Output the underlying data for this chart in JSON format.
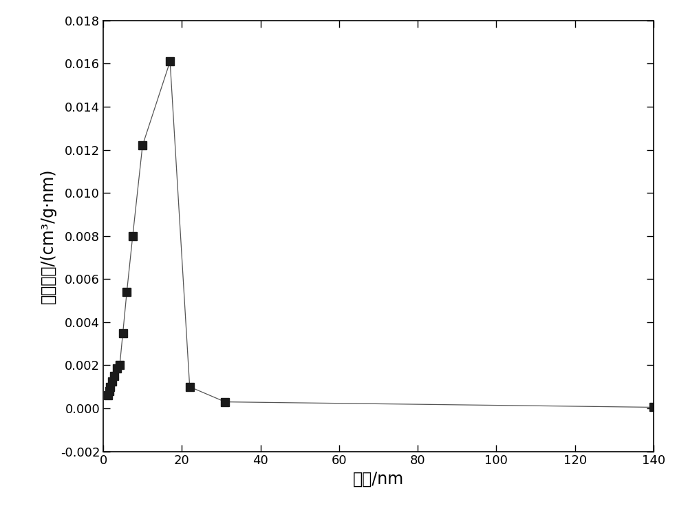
{
  "x": [
    1.2,
    1.5,
    1.8,
    2.2,
    2.8,
    3.5,
    4.2,
    5.0,
    6.0,
    7.5,
    10.0,
    17.0,
    22.0,
    31.0,
    140.0
  ],
  "y": [
    0.0006,
    0.0008,
    0.001,
    0.00125,
    0.0015,
    0.00185,
    0.002,
    0.0035,
    0.0054,
    0.008,
    0.0122,
    0.0161,
    0.001,
    0.0003,
    5e-05
  ],
  "xlim": [
    0,
    140
  ],
  "ylim": [
    -0.002,
    0.018
  ],
  "xticks": [
    0,
    20,
    40,
    60,
    80,
    100,
    120,
    140
  ],
  "yticks": [
    -0.002,
    0.0,
    0.002,
    0.004,
    0.006,
    0.008,
    0.01,
    0.012,
    0.014,
    0.016,
    0.018
  ],
  "xlabel": "孔径/nm",
  "ylabel": "孔容分布/(cm³/g·nm)",
  "marker": "s",
  "marker_color": "#1a1a1a",
  "marker_size": 9,
  "line_color": "#555555",
  "line_width": 0.9,
  "background_color": "#ffffff",
  "figure_background": "#ffffff",
  "tick_labelsize": 13,
  "xlabel_fontsize": 17,
  "ylabel_fontsize": 17
}
